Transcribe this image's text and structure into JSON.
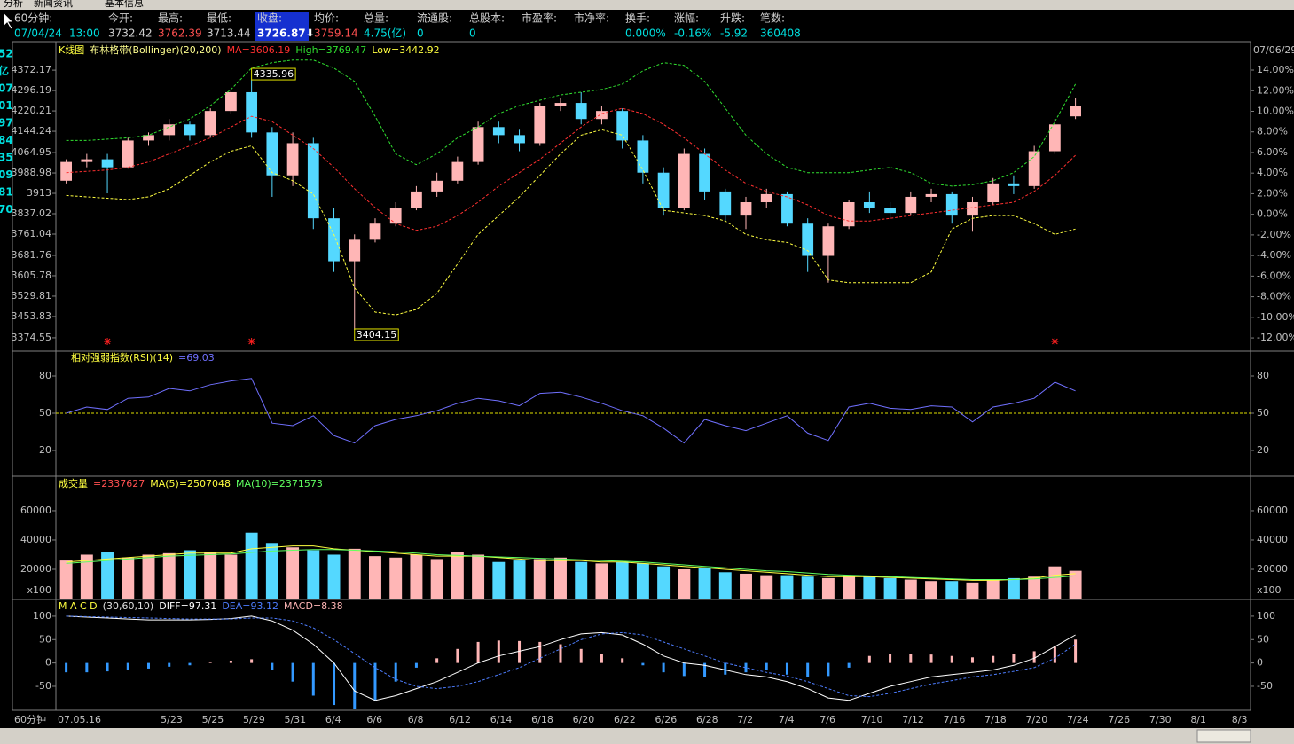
{
  "header": {
    "tabs": [
      "分析",
      "新闻资讯",
      "基本信息"
    ],
    "labels": [
      "60分钟:",
      "今开:",
      "最高:",
      "最低:",
      "收盘:",
      "均价:",
      "总量:",
      "流通股:",
      "总股本:",
      "市盈率:",
      "市净率:",
      "换手:",
      "涨幅:",
      "升跌:",
      "笔数:"
    ],
    "values": [
      "07/04/24",
      "13:00",
      "3732.42",
      "3762.39",
      "3713.44",
      "3726.87⬇",
      "3759.14",
      "4.75(亿)",
      "0",
      "0",
      "0.000%",
      "-0.16%",
      "-5.92",
      "360408"
    ]
  },
  "sidebar": [
    "52",
    "亿",
    "07",
    "01",
    "97",
    "84",
    "35",
    "09",
    "81",
    "70"
  ],
  "chart_data": [
    {
      "type": "candlestick",
      "title": "K线图",
      "subtitle": "布林格带(Bollinger)(20,200)",
      "date_label": "07/06/29",
      "up_color": "#ffb6b6",
      "down_color": "#54d8ff",
      "open": [
        3960,
        4030,
        4040,
        4010,
        4110,
        4130,
        4170,
        4130,
        4220,
        4290,
        4140,
        3980,
        4100,
        3820,
        3660,
        3740,
        3800,
        3860,
        3920,
        3960,
        4030,
        4160,
        4130,
        4100,
        4240,
        4250,
        4190,
        4220,
        4110,
        3990,
        3860,
        4060,
        3920,
        3830,
        3880,
        3910,
        3800,
        3680,
        3790,
        3880,
        3860,
        3840,
        3900,
        3910,
        3830,
        3880,
        3950,
        3940,
        4070,
        4200
      ],
      "high": [
        4040,
        4060,
        4060,
        4120,
        4140,
        4190,
        4180,
        4230,
        4300,
        4335.96,
        4160,
        4140,
        4120,
        3860,
        3760,
        3820,
        3880,
        3940,
        3990,
        4050,
        4180,
        4180,
        4150,
        4250,
        4270,
        4290,
        4240,
        4230,
        4130,
        4010,
        4080,
        4080,
        3930,
        3900,
        3930,
        3920,
        3820,
        3800,
        3890,
        3920,
        3880,
        3920,
        3930,
        3920,
        3900,
        3970,
        3980,
        4090,
        4190,
        4270
      ],
      "low": [
        3950,
        4010,
        3913,
        4005,
        4090,
        4110,
        4110,
        4120,
        4210,
        4120,
        3900,
        3940,
        3780,
        3620,
        3404.15,
        3730,
        3790,
        3850,
        3900,
        3950,
        4020,
        4100,
        4070,
        4090,
        4220,
        4170,
        4170,
        4080,
        3950,
        3830,
        3850,
        3890,
        3810,
        3780,
        3860,
        3790,
        3620,
        3580,
        3780,
        3840,
        3820,
        3830,
        3880,
        3800,
        3770,
        3870,
        3910,
        3930,
        4060,
        4190
      ],
      "close": [
        4030,
        4040,
        4010,
        4110,
        4130,
        4170,
        4130,
        4220,
        4290,
        4140,
        3980,
        4100,
        3820,
        3660,
        3740,
        3800,
        3860,
        3920,
        3960,
        4030,
        4160,
        4130,
        4100,
        4240,
        4250,
        4190,
        4220,
        4110,
        3990,
        3860,
        4060,
        3920,
        3830,
        3880,
        3910,
        3800,
        3680,
        3790,
        3880,
        3860,
        3840,
        3900,
        3910,
        3830,
        3880,
        3950,
        3940,
        4070,
        4170,
        4240
      ],
      "series": [
        {
          "name": "MA=3606.19",
          "color": "#ff3030",
          "values": [
            3990,
            3995,
            4000,
            4010,
            4030,
            4060,
            4090,
            4120,
            4160,
            4200,
            4180,
            4130,
            4080,
            4010,
            3930,
            3860,
            3800,
            3775,
            3790,
            3830,
            3880,
            3940,
            3990,
            4040,
            4100,
            4160,
            4210,
            4230,
            4210,
            4170,
            4120,
            4060,
            4000,
            3950,
            3920,
            3900,
            3870,
            3830,
            3810,
            3810,
            3820,
            3830,
            3840,
            3850,
            3860,
            3870,
            3880,
            3920,
            3980,
            4055
          ]
        },
        {
          "name": "High=3769.47",
          "color": "#30e030",
          "values": [
            4110,
            4110,
            4115,
            4120,
            4130,
            4160,
            4190,
            4240,
            4300,
            4380,
            4400,
            4410,
            4410,
            4380,
            4330,
            4200,
            4060,
            4020,
            4060,
            4120,
            4160,
            4210,
            4240,
            4260,
            4280,
            4290,
            4300,
            4320,
            4370,
            4400,
            4390,
            4330,
            4230,
            4130,
            4060,
            4010,
            3990,
            3990,
            3990,
            4000,
            4010,
            3990,
            3950,
            3940,
            3945,
            3960,
            3990,
            4050,
            4180,
            4320
          ]
        },
        {
          "name": "Low=3442.92",
          "color": "#ffff40",
          "values": [
            3905,
            3900,
            3895,
            3890,
            3900,
            3930,
            3980,
            4030,
            4070,
            4090,
            3990,
            3960,
            3910,
            3760,
            3560,
            3470,
            3460,
            3480,
            3540,
            3650,
            3760,
            3830,
            3900,
            3980,
            4060,
            4130,
            4150,
            4130,
            4000,
            3850,
            3840,
            3830,
            3810,
            3760,
            3740,
            3730,
            3700,
            3590,
            3580,
            3580,
            3580,
            3580,
            3620,
            3780,
            3820,
            3830,
            3830,
            3800,
            3760,
            3780
          ]
        }
      ],
      "extreme_labels": [
        "4335.96",
        "3404.15"
      ],
      "signal_indices": [
        2,
        9,
        48
      ],
      "ylim": [
        3328,
        4475
      ],
      "yticks": [
        4372.17,
        4296.19,
        4220.21,
        4144.24,
        4064.95,
        3988.98,
        3913,
        3837.02,
        3761.04,
        3681.76,
        3605.78,
        3529.81,
        3453.83,
        3374.55
      ],
      "y2lim": [
        -13.2,
        16.67
      ],
      "y2ticks": [
        {
          "value": 14,
          "label": "14.00%"
        },
        {
          "value": 12,
          "label": "12.00%"
        },
        {
          "value": 10,
          "label": "10.00%"
        },
        {
          "value": 8,
          "label": "8.00%"
        },
        {
          "value": 6,
          "label": "6.00%"
        },
        {
          "value": 4,
          "label": "4.00%"
        },
        {
          "value": 2,
          "label": "2.00%"
        },
        {
          "value": 0,
          "label": "0.00%"
        },
        {
          "value": -2,
          "label": "-2.00%"
        },
        {
          "value": -4,
          "label": "-4.00%"
        },
        {
          "value": -6,
          "label": "-6.00%"
        },
        {
          "value": -8,
          "label": "-8.00%"
        },
        {
          "value": -10,
          "label": "-10.00%"
        },
        {
          "value": -12,
          "label": "-12.00%"
        }
      ]
    },
    {
      "type": "line",
      "title": "相对强弱指数(RSI)(14)",
      "series": [
        {
          "name": "=69.03",
          "color": "#7070ff",
          "values": [
            50,
            55,
            53,
            62,
            63,
            70,
            68,
            73,
            76,
            78,
            42,
            40,
            48,
            32,
            26,
            40,
            45,
            48,
            52,
            58,
            62,
            60,
            56,
            66,
            67,
            63,
            58,
            52,
            48,
            38,
            26,
            45,
            40,
            36,
            42,
            48,
            34,
            28,
            55,
            58,
            54,
            53,
            56,
            55,
            43,
            55,
            58,
            62,
            75,
            68
          ]
        }
      ],
      "reference_line": 50,
      "reference_color": "#e0e000",
      "ylim": [
        0,
        100
      ],
      "yticks": [
        20,
        50,
        80
      ]
    },
    {
      "type": "bar",
      "title": "成交量",
      "unit_label": "x100",
      "series": [
        {
          "name": "=2337627",
          "color": "#ff5050",
          "values": [
            26000,
            30000,
            32000,
            28000,
            30000,
            31000,
            33000,
            32000,
            30000,
            45000,
            38000,
            35000,
            33000,
            30000,
            34000,
            29000,
            28000,
            30000,
            27000,
            32000,
            30000,
            25000,
            26000,
            27000,
            28000,
            25000,
            24000,
            25000,
            24000,
            22000,
            20000,
            21000,
            18000,
            17000,
            16000,
            16000,
            15000,
            14000,
            16000,
            15000,
            14000,
            13000,
            12000,
            12000,
            11000,
            13000,
            14000,
            15000,
            22000,
            19000
          ]
        },
        {
          "name": "MA(5)=2507048",
          "color": "#ffff40",
          "values": [
            25000,
            26000,
            27000,
            28000,
            29000,
            30000,
            31000,
            31000,
            31000,
            34000,
            35000,
            36000,
            36000,
            34000,
            33000,
            32000,
            31000,
            30000,
            29000,
            29000,
            29000,
            28000,
            27000,
            26000,
            26000,
            26000,
            25000,
            25000,
            24000,
            23000,
            22000,
            21000,
            20000,
            19000,
            18000,
            17000,
            16000,
            15000,
            15000,
            15000,
            14500,
            14000,
            13500,
            13000,
            12500,
            12500,
            13000,
            14000,
            16000,
            17000
          ]
        },
        {
          "name": "MA(10)=2371573",
          "color": "#60ff60",
          "values": [
            24000,
            25000,
            26000,
            27000,
            28000,
            29000,
            29500,
            30000,
            30500,
            31500,
            32500,
            33000,
            33500,
            33500,
            33000,
            32500,
            32000,
            31000,
            30000,
            29500,
            29000,
            28500,
            28000,
            27500,
            27000,
            26500,
            26000,
            25500,
            25000,
            24000,
            23000,
            22000,
            21000,
            20000,
            19000,
            18500,
            17500,
            16500,
            16000,
            15500,
            15000,
            14500,
            14000,
            13500,
            13000,
            13000,
            13000,
            13500,
            14500,
            15500
          ]
        }
      ],
      "ylim": [
        0,
        83000
      ],
      "yticks": [
        20000,
        40000,
        60000
      ]
    },
    {
      "type": "macd",
      "title": "M A C D",
      "subtitle": "(30,60,10)",
      "x_axis_label": "60分钟",
      "categories": [
        "07.05.16",
        null,
        null,
        null,
        null,
        "5/23",
        null,
        "5/25",
        null,
        "5/29",
        null,
        "5/31",
        null,
        "6/4",
        null,
        "6/6",
        null,
        "6/8",
        null,
        "6/12",
        null,
        "6/14",
        null,
        "6/18",
        null,
        "6/20",
        null,
        "6/22",
        null,
        "6/26",
        null,
        "6/28",
        null,
        "7/2",
        null,
        "7/4",
        null,
        "7/6",
        null,
        "7/10",
        null,
        "7/12",
        null,
        "7/16",
        null,
        "7/18",
        null,
        "7/20",
        null,
        "7/24",
        null,
        "7/26",
        null,
        "7/30",
        null,
        "8/1",
        null,
        "8/3"
      ],
      "series": [
        {
          "name": "DIFF=97.31",
          "color": "#ffffff",
          "values": [
            100,
            98,
            96,
            94,
            92,
            92,
            92,
            93,
            95,
            100,
            90,
            70,
            40,
            0,
            -60,
            -80,
            -70,
            -55,
            -40,
            -20,
            0,
            15,
            25,
            35,
            50,
            62,
            65,
            60,
            40,
            15,
            0,
            -5,
            -15,
            -25,
            -30,
            -40,
            -55,
            -75,
            -80,
            -65,
            -50,
            -40,
            -30,
            -25,
            -20,
            -15,
            -5,
            10,
            35,
            60,
            null,
            null,
            null,
            null,
            null,
            null,
            null,
            null
          ]
        },
        {
          "name": "DEA=93.12",
          "color": "#4d7dff",
          "values": [
            100,
            99,
            98,
            97,
            96,
            95,
            94,
            94,
            94,
            96,
            96,
            90,
            75,
            50,
            20,
            -10,
            -35,
            -50,
            -55,
            -50,
            -40,
            -25,
            -10,
            10,
            30,
            50,
            62,
            65,
            60,
            45,
            30,
            15,
            0,
            -10,
            -20,
            -28,
            -40,
            -55,
            -70,
            -72,
            -65,
            -55,
            -45,
            -38,
            -30,
            -25,
            -18,
            -10,
            10,
            40,
            null,
            null,
            null,
            null,
            null,
            null,
            null,
            null
          ]
        },
        {
          "name": "MACD=8.38",
          "color": "#ffb6b6",
          "negative_color": "#3399ff",
          "values": [
            -20,
            -20,
            -18,
            -15,
            -12,
            -8,
            -5,
            3,
            5,
            8,
            -15,
            -40,
            -70,
            -90,
            -100,
            -80,
            -40,
            -10,
            10,
            30,
            45,
            48,
            47,
            45,
            40,
            30,
            20,
            10,
            -5,
            -20,
            -28,
            -30,
            -25,
            -20,
            -15,
            -25,
            -30,
            -28,
            -10,
            15,
            20,
            20,
            18,
            15,
            12,
            15,
            20,
            25,
            35,
            50,
            null,
            null,
            null,
            null,
            null,
            null,
            null,
            null
          ]
        }
      ],
      "ylim": [
        -99.4,
        134
      ],
      "yticks": [
        -50,
        0,
        50,
        100
      ]
    }
  ]
}
